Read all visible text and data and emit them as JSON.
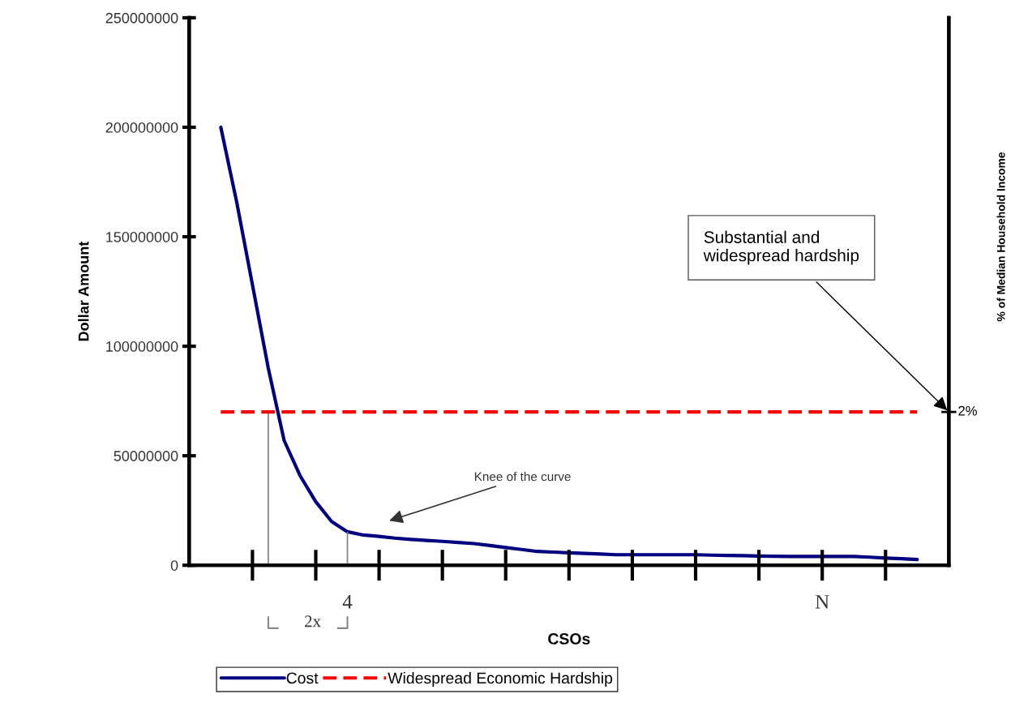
{
  "chart_data": {
    "type": "line",
    "xlabel": "CSOs",
    "ylabel": "Dollar Amount",
    "categories": [
      null,
      null,
      null,
      null,
      null,
      null,
      null,
      null,
      null,
      null,
      null,
      null,
      null,
      null,
      null,
      null,
      null,
      null,
      null,
      null,
      null,
      null,
      null,
      null,
      null,
      null,
      null,
      null,
      null,
      null,
      null,
      null,
      null,
      null,
      null,
      null,
      null,
      null,
      null,
      null,
      null,
      null,
      null,
      null,
      null
    ],
    "ylim": [
      0,
      250000000
    ],
    "yticks": [
      {
        "value": 0,
        "label": "0"
      },
      {
        "value": 50000000,
        "label": "50000000"
      },
      {
        "value": 100000000,
        "label": "100000000"
      },
      {
        "value": 150000000,
        "label": "150000000"
      },
      {
        "value": 200000000,
        "label": "200000000"
      },
      {
        "value": 250000000,
        "label": "250000000"
      }
    ],
    "series": [
      {
        "name": "Cost",
        "color": "#000080",
        "line_style": "solid",
        "values": [
          200000000,
          166000000,
          128000000,
          90000000,
          57000000,
          41000000,
          29000000,
          20000000,
          15300000,
          13800000,
          13200000,
          12400000,
          11800000,
          11300000,
          10900000,
          10400000,
          9900000,
          9000000,
          8100000,
          7200000,
          6300000,
          6000000,
          5700000,
          5400000,
          5100000,
          4800000,
          4800000,
          4800000,
          4800000,
          4800000,
          4800000,
          4600000,
          4500000,
          4400000,
          4200000,
          4100000,
          4000000,
          4000000,
          4000000,
          4000000,
          4000000,
          3700000,
          3300000,
          3000000,
          2600000
        ],
        "errors": [
          null,
          null,
          null,
          [
            0,
            70000000
          ],
          null,
          null,
          null,
          null,
          [
            0,
            15300000
          ],
          null,
          null,
          null,
          null,
          null,
          null,
          null,
          null,
          null,
          null,
          null,
          null,
          null,
          null,
          null,
          null,
          null,
          null,
          null,
          null,
          null,
          null,
          null,
          null,
          null,
          null,
          null,
          null,
          null,
          null,
          null,
          null,
          null,
          null,
          null,
          null
        ]
      },
      {
        "name": "Widespread Economic Hardship",
        "color": "#ff0000",
        "line_style": "dashed",
        "values": [
          70000000,
          70000000,
          70000000,
          70000000,
          70000000,
          70000000,
          70000000,
          70000000,
          70000000,
          70000000,
          70000000,
          70000000,
          70000000,
          70000000,
          70000000,
          70000000,
          70000000,
          70000000,
          70000000,
          70000000,
          70000000,
          70000000,
          70000000,
          70000000,
          70000000,
          70000000,
          70000000,
          70000000,
          70000000,
          70000000,
          70000000,
          70000000,
          70000000,
          70000000,
          70000000,
          70000000,
          70000000,
          70000000,
          70000000,
          70000000,
          70000000,
          70000000,
          70000000,
          70000000,
          70000000
        ]
      }
    ],
    "annotations": [
      "Substantial and\nwidespread hardship",
      "Knee of the curve",
      "4",
      "N",
      "2x",
      "2%",
      "% of Median Household Income"
    ],
    "legend": "bottom",
    "grid": false
  }
}
